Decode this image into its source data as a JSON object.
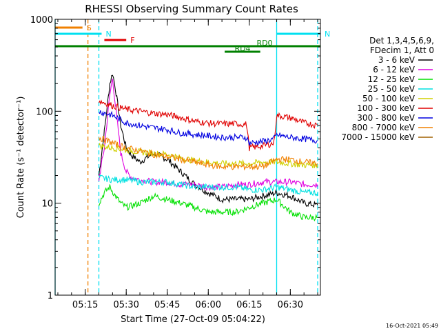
{
  "chart_data": {
    "type": "line",
    "title": "RHESSI Observing Summary Count Rates",
    "xlabel": "Start Time (27-Oct-09 05:04:22)",
    "ylabel": "Count Rate (s⁻¹ detector⁻¹)",
    "y_scale": "log",
    "ylim": [
      1,
      1000
    ],
    "y_ticks": [
      "1",
      "10",
      "100",
      "1000"
    ],
    "x_range_minutes": [
      "05:04",
      "06:41"
    ],
    "x_ticks": [
      "05:15",
      "05:30",
      "05:45",
      "06:00",
      "06:15",
      "06:30"
    ],
    "legend_header": [
      "Det 1,3,4,5,6,9,",
      "FDecim 1, Att 0"
    ],
    "legend_position": "right",
    "footer_timestamp": "16-Oct-2021 05:49",
    "flags": [
      {
        "label": "S",
        "color": "#f08000",
        "start": "05:04",
        "end": "05:14"
      },
      {
        "label": "N",
        "color": "#00e0f0",
        "start": "05:04",
        "end": "05:21"
      },
      {
        "label": "F",
        "color": "#e00000",
        "start": "05:22",
        "end": "05:30"
      },
      {
        "label": "RD0",
        "color": "#008000",
        "start": "05:04",
        "end": "06:41"
      },
      {
        "label": "RD4",
        "color": "#008000",
        "start": "06:06",
        "end": "06:19"
      },
      {
        "label": "N",
        "color": "#00e0f0",
        "start": "06:25",
        "end": "06:41"
      }
    ],
    "vertical_markers": [
      {
        "time": "05:04",
        "color": "#00e0f0",
        "style": "solid"
      },
      {
        "time": "05:16",
        "color": "#f08000",
        "style": "dashed"
      },
      {
        "time": "05:20",
        "color": "#00e0f0",
        "style": "dashed"
      },
      {
        "time": "06:25",
        "color": "#00e0f0",
        "style": "solid"
      },
      {
        "time": "06:40",
        "color": "#00e0f0",
        "style": "dashed"
      }
    ],
    "series": [
      {
        "name": "3 - 6 keV",
        "color": "#000000",
        "x": [
          "05:20",
          "05:22",
          "05:24",
          "05:25",
          "05:26",
          "05:28",
          "05:30",
          "05:32",
          "05:35",
          "05:40",
          "05:45",
          "05:50",
          "05:55",
          "06:00",
          "06:05",
          "06:10",
          "06:15",
          "06:20",
          "06:25",
          "06:30",
          "06:35",
          "06:40"
        ],
        "y": [
          20,
          60,
          200,
          260,
          180,
          70,
          40,
          33,
          28,
          35,
          30,
          22,
          16,
          13,
          11,
          11,
          11,
          12,
          13,
          12,
          10,
          9.5
        ]
      },
      {
        "name": "6 - 12 keV",
        "color": "#e000e0",
        "x": [
          "05:20",
          "05:22",
          "05:24",
          "05:25",
          "05:26",
          "05:28",
          "05:30",
          "05:32",
          "05:35",
          "05:40",
          "05:45",
          "05:50",
          "05:55",
          "06:00",
          "06:05",
          "06:10",
          "06:15",
          "06:20",
          "06:25",
          "06:30",
          "06:35",
          "06:40"
        ],
        "y": [
          18,
          40,
          150,
          230,
          120,
          35,
          22,
          19,
          18,
          17,
          17,
          16,
          16,
          15,
          15,
          16,
          16,
          17,
          17,
          17,
          16,
          16
        ]
      },
      {
        "name": "12 - 25 keV",
        "color": "#00e000",
        "x": [
          "05:20",
          "05:22",
          "05:24",
          "05:26",
          "05:28",
          "05:30",
          "05:35",
          "05:40",
          "05:45",
          "05:50",
          "05:55",
          "06:00",
          "06:05",
          "06:10",
          "06:15",
          "06:20",
          "06:25",
          "06:30",
          "06:35",
          "06:40"
        ],
        "y": [
          10,
          13,
          15,
          12,
          10,
          9,
          10,
          12,
          11,
          10,
          9,
          8,
          8,
          8,
          9,
          10,
          11,
          8,
          7,
          7
        ]
      },
      {
        "name": "25 - 50 keV",
        "color": "#00e0e0",
        "x": [
          "05:20",
          "05:25",
          "05:30",
          "05:35",
          "05:40",
          "05:45",
          "05:50",
          "05:55",
          "06:00",
          "06:05",
          "06:10",
          "06:15",
          "06:20",
          "06:25",
          "06:30",
          "06:35",
          "06:40"
        ],
        "y": [
          19,
          18,
          18,
          17,
          17,
          17,
          16,
          15,
          15,
          15,
          15,
          14,
          14,
          15,
          14,
          13,
          13
        ]
      },
      {
        "name": "50 - 100 keV",
        "color": "#d0d000",
        "x": [
          "05:20",
          "05:25",
          "05:30",
          "05:35",
          "05:40",
          "05:45",
          "05:50",
          "05:55",
          "06:00",
          "06:05",
          "06:10",
          "06:15",
          "06:20",
          "06:25",
          "06:30",
          "06:35",
          "06:40"
        ],
        "y": [
          42,
          40,
          38,
          36,
          35,
          34,
          31,
          29,
          28,
          27,
          27,
          27,
          28,
          28,
          27,
          26,
          26
        ]
      },
      {
        "name": "100 - 300 keV",
        "color": "#e00000",
        "x": [
          "05:20",
          "05:25",
          "05:30",
          "05:35",
          "05:40",
          "05:45",
          "05:50",
          "05:55",
          "06:00",
          "06:05",
          "06:10",
          "06:14",
          "06:15",
          "06:20",
          "06:24",
          "06:25",
          "06:30",
          "06:35",
          "06:40"
        ],
        "y": [
          130,
          115,
          105,
          100,
          95,
          92,
          85,
          78,
          74,
          73,
          73,
          72,
          40,
          42,
          45,
          90,
          85,
          75,
          70
        ]
      },
      {
        "name": "300 - 800 keV",
        "color": "#0000e0",
        "x": [
          "05:20",
          "05:25",
          "05:30",
          "05:35",
          "05:40",
          "05:45",
          "05:50",
          "05:55",
          "06:00",
          "06:05",
          "06:10",
          "06:14",
          "06:15",
          "06:20",
          "06:24",
          "06:25",
          "06:30",
          "06:35",
          "06:40"
        ],
        "y": [
          100,
          90,
          75,
          70,
          66,
          63,
          58,
          56,
          54,
          52,
          52,
          52,
          45,
          47,
          50,
          55,
          52,
          50,
          48
        ]
      },
      {
        "name": "800 - 7000 keV",
        "color": "#f08000",
        "x": [
          "05:20",
          "05:25",
          "05:30",
          "05:35",
          "05:40",
          "05:45",
          "05:50",
          "05:55",
          "06:00",
          "06:05",
          "06:10",
          "06:15",
          "06:20",
          "06:25",
          "06:30",
          "06:35",
          "06:40"
        ],
        "y": [
          52,
          45,
          40,
          37,
          34,
          32,
          30,
          28,
          26,
          25,
          25,
          25,
          25,
          30,
          30,
          28,
          27
        ]
      },
      {
        "name": "7000 - 15000 keV",
        "color": "#a06000",
        "x": [],
        "y": []
      }
    ]
  }
}
